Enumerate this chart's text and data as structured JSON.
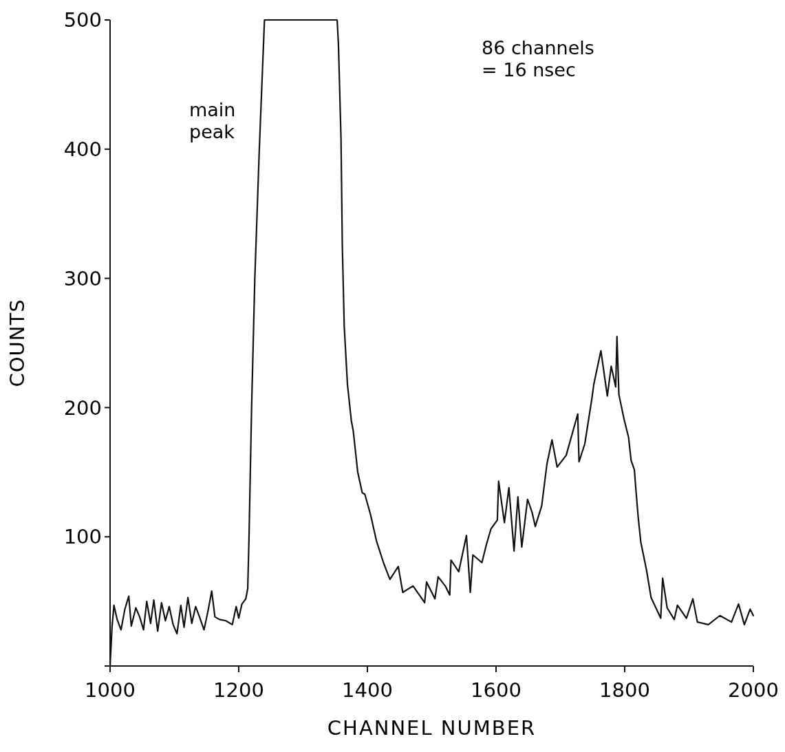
{
  "chart_data": {
    "type": "line",
    "xlabel": "CHANNEL NUMBER",
    "ylabel": "COUNTS",
    "xlim": [
      1000,
      2000
    ],
    "ylim": [
      0,
      500
    ],
    "xticks": [
      1000,
      1200,
      1400,
      1600,
      1800,
      2000
    ],
    "yticks": [
      {
        "value": 0,
        "label": null
      },
      100,
      200,
      300,
      400,
      500
    ],
    "grid": false,
    "marker": "none",
    "line_style": "solid",
    "series": [
      {
        "color": "#111111",
        "x": [
          1000,
          1003,
          1006,
          1011,
          1017,
          1023,
          1029,
          1033,
          1040,
          1046,
          1052,
          1057,
          1063,
          1068,
          1074,
          1080,
          1086,
          1092,
          1098,
          1104,
          1110,
          1115,
          1121,
          1127,
          1133,
          1139,
          1146,
          1152,
          1158,
          1163,
          1170,
          1180,
          1190,
          1196,
          1200,
          1205,
          1211,
          1214,
          1216,
          1220,
          1225,
          1232,
          1240,
          1353,
          1355,
          1359,
          1361,
          1364,
          1369,
          1375,
          1378,
          1385,
          1392,
          1396,
          1405,
          1414,
          1425,
          1435,
          1448,
          1455,
          1471,
          1489,
          1492,
          1505,
          1510,
          1521,
          1528,
          1530,
          1542,
          1554,
          1560,
          1564,
          1578,
          1585,
          1592,
          1602,
          1604,
          1613,
          1620,
          1628,
          1634,
          1640,
          1649,
          1656,
          1661,
          1671,
          1679,
          1687,
          1695,
          1709,
          1727,
          1729,
          1738,
          1749,
          1752,
          1763,
          1773,
          1779,
          1786,
          1788,
          1791,
          1799,
          1806,
          1810,
          1815,
          1818,
          1821,
          1825,
          1834,
          1841,
          1856,
          1859,
          1866,
          1877,
          1882,
          1896,
          1906,
          1913,
          1930,
          1948,
          1966,
          1977,
          1986,
          1995,
          2000
        ],
        "values": [
          0,
          30,
          47,
          36,
          28,
          44,
          54,
          31,
          45,
          38,
          28,
          50,
          33,
          51,
          27,
          49,
          35,
          46,
          32,
          25,
          47,
          30,
          53,
          33,
          46,
          38,
          28,
          42,
          58,
          38,
          36,
          35,
          32,
          46,
          37,
          48,
          52,
          60,
          100,
          200,
          300,
          400,
          500,
          500,
          481,
          408,
          326,
          263,
          218,
          190,
          182,
          150,
          134,
          133,
          117,
          97,
          80,
          67,
          77,
          57,
          62,
          49,
          65,
          52,
          69,
          62,
          55,
          82,
          73,
          101,
          57,
          86,
          80,
          94,
          106,
          113,
          143,
          111,
          138,
          89,
          131,
          92,
          129,
          119,
          108,
          124,
          156,
          175,
          154,
          163,
          195,
          158,
          172,
          207,
          218,
          244,
          209,
          232,
          216,
          255,
          210,
          191,
          177,
          159,
          152,
          133,
          115,
          96,
          74,
          53,
          37,
          68,
          45,
          36,
          47,
          37,
          52,
          34,
          32,
          39,
          34,
          48,
          32,
          44,
          39
        ]
      }
    ],
    "annotations": [
      "main peak",
      "86 channels = 16 nsec"
    ]
  }
}
